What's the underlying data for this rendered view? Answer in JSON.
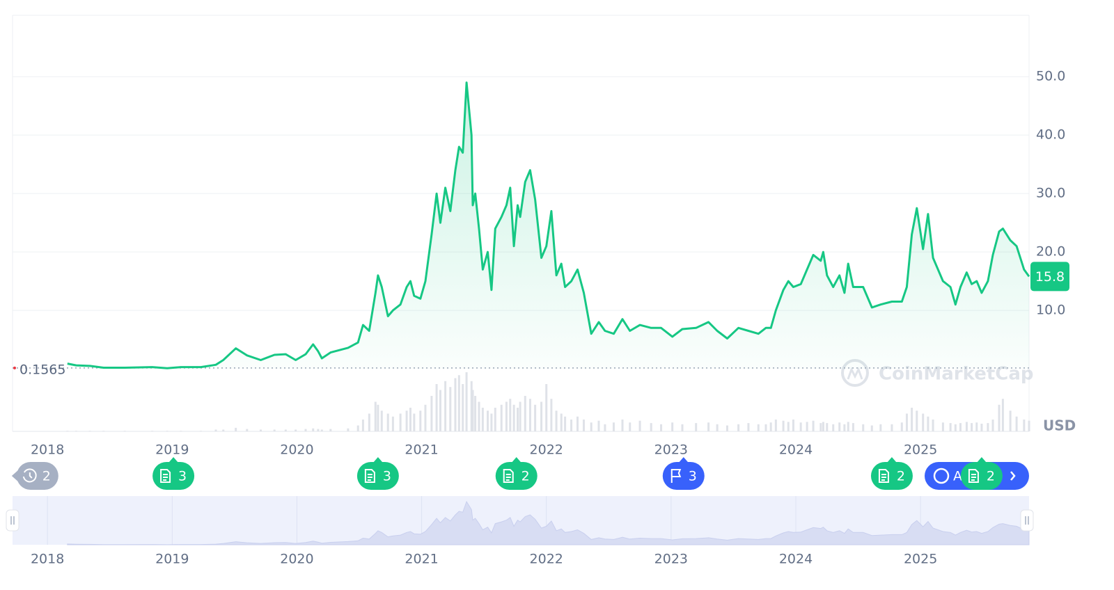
{
  "chart_data": {
    "type": "line",
    "x": [
      2018.16,
      2018.23,
      2018.34,
      2018.45,
      2018.62,
      2018.84,
      2018.96,
      2019.07,
      2019.23,
      2019.35,
      2019.41,
      2019.51,
      2019.6,
      2019.71,
      2019.82,
      2019.91,
      2019.99,
      2020.07,
      2020.13,
      2020.17,
      2020.2,
      2020.27,
      2020.41,
      2020.49,
      2020.53,
      2020.58,
      2020.63,
      2020.65,
      2020.68,
      2020.73,
      2020.77,
      2020.83,
      2020.88,
      2020.91,
      2020.94,
      2020.99,
      2021.03,
      2021.08,
      2021.12,
      2021.15,
      2021.19,
      2021.23,
      2021.27,
      2021.3,
      2021.33,
      2021.36,
      2021.4,
      2021.41,
      2021.43,
      2021.46,
      2021.49,
      2021.53,
      2021.56,
      2021.59,
      2021.64,
      2021.68,
      2021.71,
      2021.74,
      2021.77,
      2021.79,
      2021.83,
      2021.87,
      2021.91,
      2021.96,
      2022.0,
      2022.04,
      2022.08,
      2022.12,
      2022.15,
      2022.2,
      2022.25,
      2022.3,
      2022.36,
      2022.42,
      2022.47,
      2022.54,
      2022.61,
      2022.67,
      2022.75,
      2022.84,
      2022.92,
      2023.01,
      2023.09,
      2023.2,
      2023.3,
      2023.37,
      2023.45,
      2023.54,
      2023.62,
      2023.7,
      2023.76,
      2023.8,
      2023.84,
      2023.9,
      2023.94,
      2023.98,
      2024.04,
      2024.09,
      2024.14,
      2024.2,
      2024.22,
      2024.25,
      2024.3,
      2024.35,
      2024.39,
      2024.42,
      2024.46,
      2024.54,
      2024.61,
      2024.68,
      2024.77,
      2024.85,
      2024.89,
      2024.93,
      2024.97,
      2025.02,
      2025.06,
      2025.1,
      2025.18,
      2025.24,
      2025.28,
      2025.32,
      2025.37,
      2025.41,
      2025.45,
      2025.49,
      2025.54,
      2025.58,
      2025.63,
      2025.66,
      2025.72,
      2025.77,
      2025.83,
      2025.87
    ],
    "series": [
      {
        "color": "#16c784",
        "values": [
          0.9,
          0.6,
          0.5,
          0.2,
          0.2,
          0.3,
          0.1,
          0.3,
          0.3,
          0.7,
          1.5,
          3.5,
          2.3,
          1.5,
          2.4,
          2.5,
          1.5,
          2.5,
          4.2,
          3.0,
          1.8,
          2.8,
          3.6,
          4.5,
          7.5,
          6.5,
          13,
          16,
          14,
          9,
          10,
          11,
          14,
          15,
          12.5,
          12,
          15,
          23,
          30,
          25,
          31,
          27,
          34,
          38,
          37,
          49,
          40,
          28,
          30,
          24,
          17,
          20,
          13.5,
          24,
          26,
          28,
          31,
          21,
          28,
          26,
          32,
          34,
          29,
          19,
          21,
          27,
          16,
          18,
          14,
          15,
          17,
          13,
          6,
          8,
          6.5,
          6,
          8.5,
          6.5,
          7.5,
          7,
          7,
          5.5,
          6.8,
          7,
          8,
          6.5,
          5.2,
          7,
          6.5,
          6,
          7,
          7,
          10,
          13.5,
          15,
          14,
          14.5,
          17,
          19.5,
          18.5,
          20,
          16,
          14,
          16,
          13,
          18,
          14,
          14,
          10.5,
          11,
          11.5,
          11.5,
          14,
          23,
          27.5,
          20.5,
          26.5,
          19,
          15,
          14,
          11,
          14,
          16.5,
          14.5,
          15,
          13,
          15,
          19.5,
          23.5,
          24,
          22,
          21,
          17,
          15.8
        ]
      }
    ],
    "volume": {
      "color": "#dfe2e8",
      "ylim": [
        0,
        100
      ],
      "values": [
        1,
        1,
        1,
        1,
        1,
        1,
        1,
        1,
        1,
        3,
        3,
        6,
        4,
        3,
        3,
        3,
        3,
        4,
        5,
        4,
        3,
        4,
        5,
        10,
        20,
        30,
        50,
        45,
        35,
        30,
        25,
        30,
        35,
        40,
        30,
        35,
        45,
        60,
        80,
        70,
        85,
        75,
        90,
        95,
        80,
        100,
        85,
        70,
        60,
        50,
        40,
        35,
        30,
        40,
        45,
        50,
        55,
        45,
        40,
        50,
        60,
        55,
        45,
        50,
        80,
        55,
        35,
        30,
        25,
        20,
        25,
        20,
        15,
        18,
        12,
        15,
        20,
        15,
        18,
        14,
        12,
        15,
        12,
        14,
        15,
        12,
        10,
        12,
        14,
        12,
        12,
        15,
        20,
        18,
        16,
        20,
        15,
        16,
        18,
        14,
        16,
        14,
        12,
        15,
        12,
        16,
        14,
        12,
        10,
        12,
        12,
        15,
        30,
        40,
        35,
        30,
        25,
        20,
        15,
        14,
        12,
        14,
        16,
        14,
        15,
        13,
        14,
        20,
        45,
        55,
        35,
        25,
        20,
        18
      ]
    },
    "start_price": 0.1565,
    "xlim": [
      2017.72,
      2025.87
    ],
    "xticks": [
      2018,
      2019,
      2020,
      2021,
      2022,
      2023,
      2024,
      2025
    ],
    "ylim": [
      -10.7,
      60.5
    ],
    "yticks": [
      {
        "value": 10,
        "label": "10.0"
      },
      {
        "value": 20,
        "label": "20.0"
      },
      {
        "value": 30,
        "label": "30.0"
      },
      {
        "value": 40,
        "label": "40.0"
      },
      {
        "value": 50,
        "label": "50.0"
      }
    ],
    "grid": true,
    "currency": "USD",
    "watermark": "CoinMarketCap",
    "events": [
      {
        "x": 2017.92,
        "kind": "history",
        "count": 2
      },
      {
        "x": 2019.01,
        "kind": "doc",
        "count": 3
      },
      {
        "x": 2020.65,
        "kind": "doc",
        "count": 3
      },
      {
        "x": 2021.76,
        "kind": "doc",
        "count": 2
      },
      {
        "x": 2023.1,
        "kind": "flag",
        "count": 3
      },
      {
        "x": 2024.77,
        "kind": "doc",
        "count": 2
      },
      {
        "x": 2025.49,
        "kind": "doc",
        "count": 2
      }
    ],
    "ai_label": "A"
  }
}
